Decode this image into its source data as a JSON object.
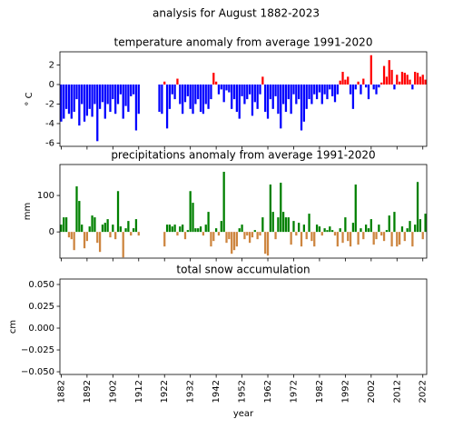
{
  "title": "analysis for August 1882-2023",
  "chart_data": [
    {
      "type": "bar",
      "title": "temperature anomaly from average 1991-2020",
      "ylabel": "° C",
      "positive_color": "#ff0000",
      "negative_color": "#0000ff",
      "x": [
        1882,
        1883,
        1884,
        1885,
        1886,
        1887,
        1888,
        1889,
        1890,
        1891,
        1892,
        1893,
        1894,
        1895,
        1896,
        1897,
        1898,
        1899,
        1900,
        1901,
        1902,
        1903,
        1904,
        1905,
        1906,
        1907,
        1908,
        1909,
        1910,
        1911,
        1912,
        1913,
        1914,
        1915,
        1916,
        1917,
        1918,
        1919,
        1920,
        1921,
        1922,
        1923,
        1924,
        1925,
        1926,
        1927,
        1928,
        1929,
        1930,
        1931,
        1932,
        1933,
        1934,
        1935,
        1936,
        1937,
        1938,
        1939,
        1940,
        1941,
        1942,
        1943,
        1944,
        1945,
        1946,
        1947,
        1948,
        1949,
        1950,
        1951,
        1952,
        1953,
        1954,
        1955,
        1956,
        1957,
        1958,
        1959,
        1960,
        1961,
        1962,
        1963,
        1964,
        1965,
        1966,
        1967,
        1968,
        1969,
        1970,
        1971,
        1972,
        1973,
        1974,
        1975,
        1976,
        1977,
        1978,
        1979,
        1980,
        1981,
        1982,
        1983,
        1984,
        1985,
        1986,
        1987,
        1988,
        1989,
        1990,
        1991,
        1992,
        1993,
        1994,
        1995,
        1996,
        1997,
        1998,
        1999,
        2000,
        2001,
        2002,
        2003,
        2004,
        2005,
        2006,
        2007,
        2008,
        2009,
        2010,
        2011,
        2012,
        2013,
        2014,
        2015,
        2016,
        2017,
        2018,
        2019,
        2020,
        2021,
        2022,
        2023
      ],
      "values": [
        -3.8,
        -3.5,
        -2.5,
        -3.0,
        -3.5,
        -2.8,
        -1.5,
        -4.2,
        -2.0,
        -3.8,
        -3.2,
        -2.5,
        -3.3,
        -2.0,
        -5.8,
        -2.5,
        -1.8,
        -3.5,
        -2.0,
        -2.8,
        -1.5,
        -3.0,
        -2.0,
        -1.0,
        -3.5,
        -2.2,
        -2.8,
        -1.2,
        -1.0,
        -4.7,
        -3.0,
        null,
        null,
        null,
        null,
        null,
        null,
        null,
        -2.8,
        -3.0,
        0.3,
        -4.5,
        -2.5,
        -1.0,
        -1.5,
        0.6,
        -2.0,
        -3.0,
        -1.8,
        -1.2,
        -2.5,
        -3.0,
        -2.0,
        -1.5,
        -2.8,
        -3.0,
        -2.0,
        -2.5,
        -1.5,
        1.2,
        0.3,
        -1.0,
        -0.5,
        -1.8,
        -0.6,
        -0.8,
        -2.5,
        -1.5,
        -2.8,
        -3.5,
        -1.2,
        -2.0,
        -1.5,
        -1.0,
        -3.2,
        -1.8,
        -2.5,
        -1.0,
        0.8,
        -2.8,
        -3.5,
        -1.5,
        -2.5,
        -1.2,
        -3.0,
        -4.5,
        -2.0,
        -2.8,
        -1.5,
        -3.0,
        -1.0,
        -2.0,
        -1.5,
        -4.7,
        -3.8,
        -2.5,
        -1.5,
        -2.0,
        -1.0,
        -1.5,
        -0.8,
        -2.0,
        -1.0,
        -1.5,
        -0.5,
        -1.2,
        -1.8,
        -1.0,
        0.4,
        1.3,
        0.5,
        0.8,
        -1.0,
        -2.5,
        -0.5,
        0.3,
        -1.0,
        0.6,
        -0.3,
        -1.5,
        3.0,
        -0.5,
        -1.0,
        -0.3,
        0.2,
        1.9,
        0.8,
        2.5,
        1.5,
        -0.5,
        1.0,
        0.3,
        1.3,
        1.2,
        1.0,
        0.5,
        -0.5,
        1.3,
        1.2,
        0.8,
        1.0,
        0.5
      ],
      "xlim": [
        1881.5,
        2023.5
      ],
      "xticks": [
        1882,
        1892,
        1902,
        1912,
        1922,
        1932,
        1942,
        1952,
        1962,
        1972,
        1982,
        1992,
        2002,
        2012,
        2022
      ],
      "ylim": [
        -6.33,
        3.35
      ],
      "yticks": [
        2,
        0,
        -2,
        -4,
        -6
      ]
    },
    {
      "type": "bar",
      "title": "precipitations anomaly from average 1991-2020",
      "ylabel": "mm",
      "positive_color": "#008000",
      "negative_color": "#cd853f",
      "x": [
        1882,
        1883,
        1884,
        1885,
        1886,
        1887,
        1888,
        1889,
        1890,
        1891,
        1892,
        1893,
        1894,
        1895,
        1896,
        1897,
        1898,
        1899,
        1900,
        1901,
        1902,
        1903,
        1904,
        1905,
        1906,
        1907,
        1908,
        1909,
        1910,
        1911,
        1912,
        1913,
        1914,
        1915,
        1916,
        1917,
        1918,
        1919,
        1920,
        1921,
        1922,
        1923,
        1924,
        1925,
        1926,
        1927,
        1928,
        1929,
        1930,
        1931,
        1932,
        1933,
        1934,
        1935,
        1936,
        1937,
        1938,
        1939,
        1940,
        1941,
        1942,
        1943,
        1944,
        1945,
        1946,
        1947,
        1948,
        1949,
        1950,
        1951,
        1952,
        1953,
        1954,
        1955,
        1956,
        1957,
        1958,
        1959,
        1960,
        1961,
        1962,
        1963,
        1964,
        1965,
        1966,
        1967,
        1968,
        1969,
        1970,
        1971,
        1972,
        1973,
        1974,
        1975,
        1976,
        1977,
        1978,
        1979,
        1980,
        1981,
        1982,
        1983,
        1984,
        1985,
        1986,
        1987,
        1988,
        1989,
        1990,
        1991,
        1992,
        1993,
        1994,
        1995,
        1996,
        1997,
        1998,
        1999,
        2000,
        2001,
        2002,
        2003,
        2004,
        2005,
        2006,
        2007,
        2008,
        2009,
        2010,
        2011,
        2012,
        2013,
        2014,
        2015,
        2016,
        2017,
        2018,
        2019,
        2020,
        2021,
        2022,
        2023
      ],
      "values": [
        20,
        40,
        40,
        -15,
        -20,
        -50,
        125,
        85,
        20,
        -45,
        -25,
        15,
        45,
        40,
        -30,
        -55,
        20,
        25,
        35,
        -15,
        20,
        -20,
        112,
        15,
        -70,
        10,
        30,
        -10,
        10,
        35,
        -10,
        null,
        null,
        null,
        null,
        null,
        null,
        null,
        null,
        null,
        -40,
        20,
        20,
        15,
        20,
        -10,
        15,
        20,
        -20,
        5,
        112,
        80,
        10,
        10,
        15,
        -10,
        20,
        55,
        -40,
        -25,
        10,
        -10,
        30,
        165,
        -30,
        -20,
        -60,
        -50,
        -40,
        10,
        20,
        -20,
        -10,
        -30,
        -15,
        5,
        -20,
        -10,
        40,
        -60,
        -65,
        130,
        55,
        -20,
        40,
        135,
        55,
        40,
        40,
        -35,
        30,
        -10,
        25,
        -40,
        20,
        -20,
        50,
        -25,
        -40,
        20,
        15,
        -10,
        10,
        5,
        15,
        5,
        -10,
        -40,
        10,
        -30,
        40,
        -25,
        -40,
        25,
        130,
        -35,
        10,
        -20,
        20,
        10,
        35,
        -35,
        -20,
        20,
        -10,
        -25,
        5,
        45,
        -40,
        55,
        -40,
        -35,
        15,
        -25,
        10,
        30,
        -40,
        20,
        137,
        35,
        -20,
        50
      ],
      "xlim": [
        1881.5,
        2023.5
      ],
      "xticks": [
        1882,
        1892,
        1902,
        1912,
        1922,
        1932,
        1942,
        1952,
        1962,
        1972,
        1982,
        1992,
        2002,
        2012,
        2022
      ],
      "ylim": [
        -72,
        185
      ],
      "yticks": [
        100,
        0
      ]
    },
    {
      "type": "bar",
      "title": "total snow accumulation",
      "ylabel": "cm",
      "xlabel": "year",
      "xlim": [
        1881.5,
        2023.5
      ],
      "xticks": [
        1882,
        1892,
        1902,
        1912,
        1922,
        1932,
        1942,
        1952,
        1962,
        1972,
        1982,
        1992,
        2002,
        2012,
        2022
      ],
      "ylim": [
        -0.0531,
        0.05625
      ],
      "yticks": [
        {
          "value": 0.05,
          "label": "0.050"
        },
        {
          "value": 0.025,
          "label": "0.025"
        },
        {
          "value": 0,
          "label": "0.000"
        },
        {
          "value": -0.025,
          "label": "−0.025"
        },
        {
          "value": -0.05,
          "label": "−0.050"
        }
      ]
    }
  ]
}
